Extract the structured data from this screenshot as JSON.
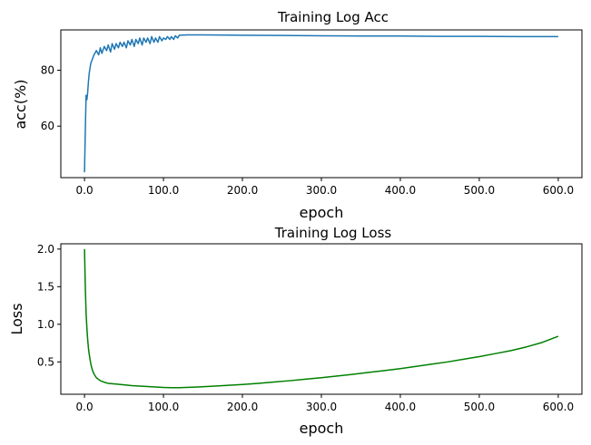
{
  "chart_data": [
    {
      "type": "line",
      "title": "Training Log Acc",
      "xlabel": "epoch",
      "ylabel": "acc(%)",
      "xlim": [
        -30,
        630
      ],
      "ylim": [
        41.6,
        94.4
      ],
      "xticks": [
        0,
        100,
        200,
        300,
        400,
        500,
        600
      ],
      "xtick_labels": [
        "0.0",
        "100.0",
        "200.0",
        "300.0",
        "400.0",
        "500.0",
        "600.0"
      ],
      "yticks": [
        60,
        80
      ],
      "ytick_labels": [
        "60",
        "80"
      ],
      "grid": false,
      "series": [
        {
          "color": "#1f77b4",
          "x": [
            0,
            1,
            2,
            3,
            4,
            5,
            6,
            8,
            10,
            12,
            15,
            18,
            20,
            22,
            25,
            28,
            30,
            33,
            35,
            38,
            40,
            43,
            45,
            48,
            50,
            53,
            55,
            58,
            60,
            63,
            65,
            68,
            70,
            73,
            75,
            78,
            80,
            83,
            85,
            88,
            90,
            93,
            95,
            98,
            100,
            103,
            105,
            108,
            110,
            113,
            115,
            118,
            120,
            130,
            150,
            200,
            250,
            300,
            350,
            400,
            450,
            500,
            550,
            600
          ],
          "y": [
            43.5,
            58,
            71,
            69.5,
            72,
            76,
            79,
            82.5,
            84,
            85.5,
            87,
            85.5,
            88,
            86,
            88.5,
            87,
            89,
            86.5,
            89.5,
            87.5,
            89.5,
            88,
            90,
            88.5,
            90,
            88,
            90.5,
            89,
            91,
            88.5,
            91,
            89.5,
            91.5,
            89,
            91.5,
            90,
            91.5,
            89.5,
            92,
            90,
            91.5,
            90,
            92,
            90.5,
            91.5,
            91,
            92,
            91,
            92,
            91,
            92.3,
            91.5,
            92.5,
            92.6,
            92.6,
            92.5,
            92.4,
            92.3,
            92.2,
            92.2,
            92.1,
            92.1,
            92,
            92
          ]
        }
      ]
    },
    {
      "type": "line",
      "title": "Training Log Loss",
      "xlabel": "epoch",
      "ylabel": "Loss",
      "xlim": [
        -30,
        630
      ],
      "ylim": [
        0.07,
        2.07
      ],
      "xticks": [
        0,
        100,
        200,
        300,
        400,
        500,
        600
      ],
      "xtick_labels": [
        "0.0",
        "100.0",
        "200.0",
        "300.0",
        "400.0",
        "500.0",
        "600.0"
      ],
      "yticks": [
        0.5,
        1.0,
        1.5,
        2.0
      ],
      "ytick_labels": [
        "0.5",
        "1.0",
        "1.5",
        "2.0"
      ],
      "grid": false,
      "series": [
        {
          "color": "#008000",
          "x": [
            0,
            1,
            2,
            3,
            4,
            5,
            6,
            8,
            10,
            12,
            15,
            20,
            25,
            30,
            40,
            50,
            60,
            70,
            80,
            90,
            100,
            110,
            120,
            140,
            160,
            180,
            200,
            220,
            240,
            260,
            280,
            300,
            320,
            340,
            360,
            380,
            400,
            420,
            440,
            460,
            480,
            500,
            520,
            540,
            560,
            580,
            600
          ],
          "y": [
            2.0,
            1.5,
            1.15,
            0.95,
            0.8,
            0.68,
            0.6,
            0.47,
            0.39,
            0.34,
            0.29,
            0.25,
            0.23,
            0.215,
            0.205,
            0.195,
            0.185,
            0.178,
            0.172,
            0.166,
            0.16,
            0.158,
            0.157,
            0.165,
            0.175,
            0.188,
            0.2,
            0.215,
            0.232,
            0.25,
            0.27,
            0.29,
            0.312,
            0.335,
            0.36,
            0.385,
            0.41,
            0.44,
            0.47,
            0.5,
            0.535,
            0.57,
            0.61,
            0.65,
            0.7,
            0.76,
            0.84
          ]
        }
      ]
    }
  ]
}
